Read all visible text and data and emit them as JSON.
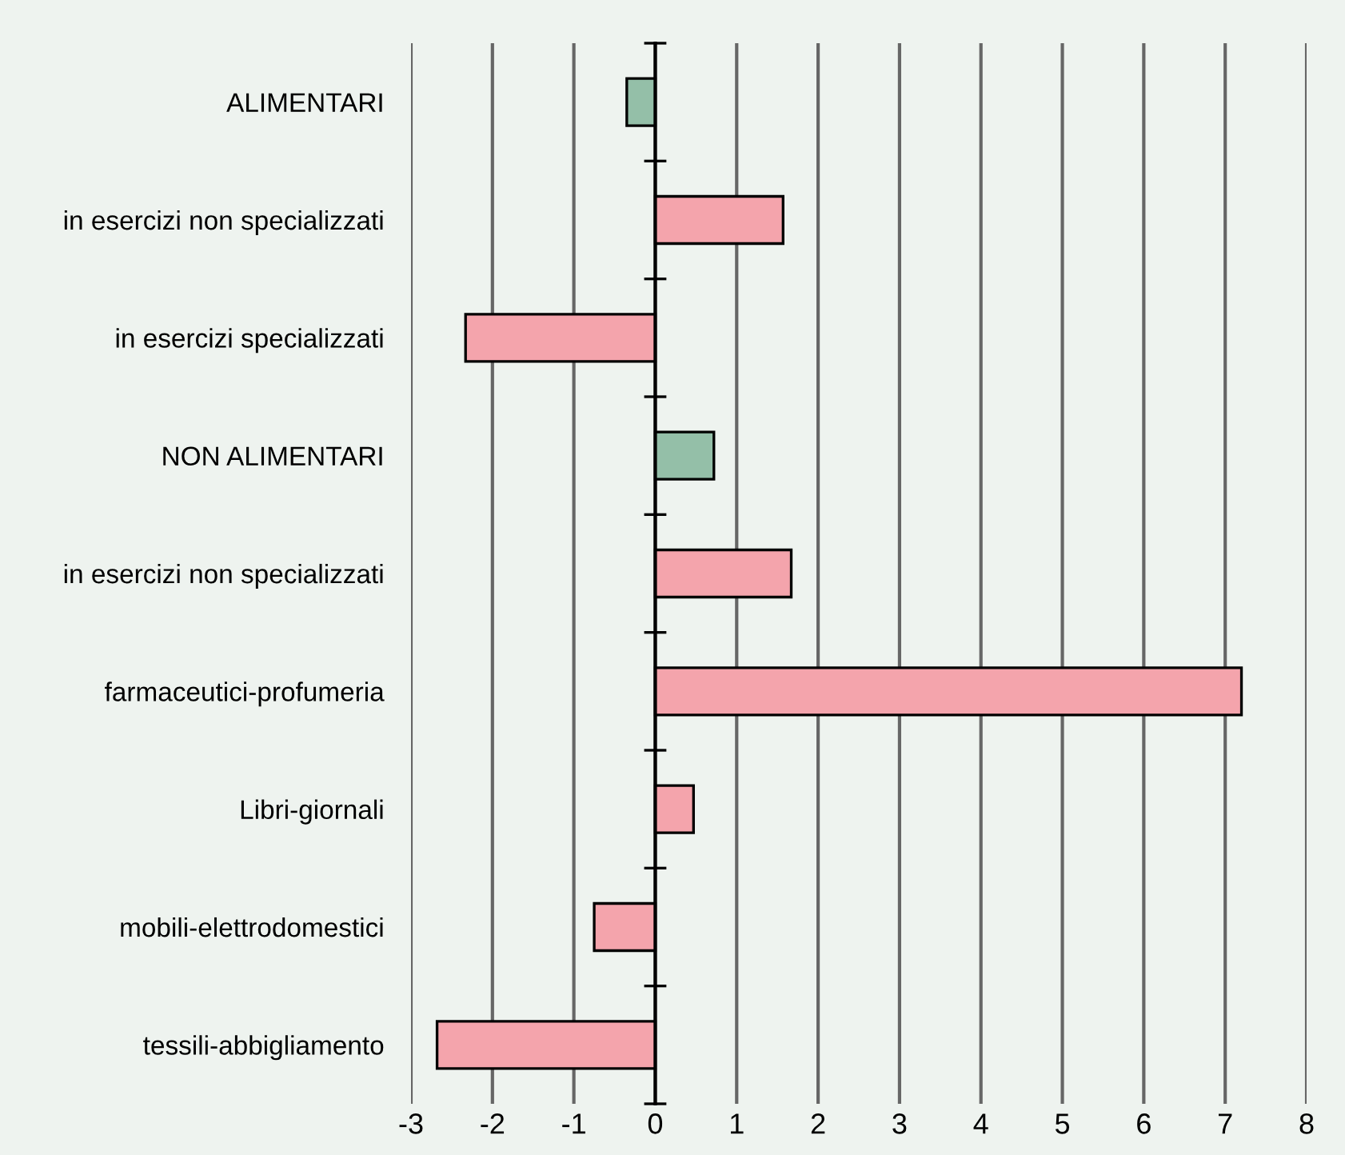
{
  "chart_data": {
    "type": "bar",
    "orientation": "horizontal",
    "categories": [
      "ALIMENTARI",
      "in esercizi non specializzati",
      "in esercizi specializzati",
      "NON ALIMENTARI",
      "in esercizi non specializzati",
      "farmaceutici-profumeria",
      "Libri-giornali",
      "mobili-elettrodomestici",
      "tessili-abbigliamento"
    ],
    "values": [
      -0.35,
      1.57,
      -2.33,
      0.72,
      1.67,
      7.2,
      0.47,
      -0.75,
      -2.68
    ],
    "colors": [
      "#94bfa8",
      "#f4a4ac",
      "#f4a4ac",
      "#94bfa8",
      "#f4a4ac",
      "#f4a4ac",
      "#f4a4ac",
      "#f4a4ac",
      "#f4a4ac"
    ],
    "xlim": [
      -3,
      8
    ],
    "xticks": [
      -3,
      -2,
      -1,
      0,
      1,
      2,
      3,
      4,
      5,
      6,
      7,
      8
    ],
    "grid": "x",
    "legend": false
  }
}
